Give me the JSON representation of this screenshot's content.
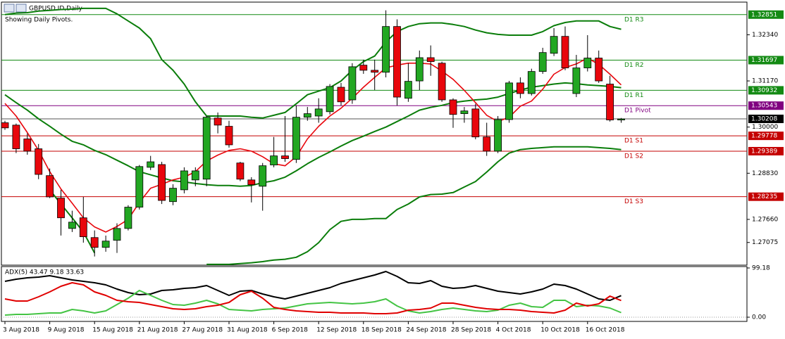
{
  "chart_data": [
    {
      "type": "candlestick",
      "title": "GBPUSD.ID,Daily",
      "subtitle": "Showing Daily Pivots.",
      "categories": [
        "3 Aug 2018",
        null,
        null,
        null,
        "9 Aug 2018",
        null,
        null,
        null,
        "15 Aug 2018",
        null,
        null,
        null,
        "21 Aug 2018",
        null,
        null,
        null,
        "27 Aug 2018",
        null,
        null,
        null,
        "31 Aug 2018",
        null,
        null,
        null,
        "6 Sep 2018",
        null,
        null,
        null,
        "12 Sep 2018",
        null,
        null,
        null,
        "18 Sep 2018",
        null,
        null,
        null,
        "24 Sep 2018",
        null,
        null,
        null,
        "28 Sep 2018",
        null,
        null,
        null,
        "4 Oct 2018",
        null,
        null,
        null,
        "10 Oct 2018",
        null,
        null,
        null,
        "16 Oct 2018",
        null,
        null,
        null
      ],
      "open": [
        1.3011,
        1.3005,
        1.297,
        1.2945,
        1.2877,
        1.282,
        1.2743,
        1.277,
        1.272,
        1.2695,
        1.2713,
        1.2743,
        1.2797,
        1.2898,
        1.2905,
        1.2811,
        1.2841,
        1.2866,
        1.2868,
        1.3023,
        1.3002,
        1.2909,
        1.2866,
        1.285,
        1.2904,
        1.2927,
        1.2918,
        1.3025,
        1.3028,
        1.3039,
        1.3101,
        1.3069,
        1.3157,
        1.3144,
        1.3139,
        1.3255,
        1.3073,
        1.3117,
        1.3176,
        1.3162,
        1.3069,
        1.3034,
        1.3046,
        1.2975,
        1.2939,
        1.3019,
        1.3112,
        1.3085,
        1.3141,
        1.3187,
        1.323,
        1.3085,
        1.315,
        1.3175,
        1.3109,
        1.3018
      ],
      "high": [
        1.3016,
        1.3009,
        1.2984,
        1.2957,
        1.2895,
        1.2841,
        1.2788,
        1.2823,
        1.2738,
        1.2725,
        1.2756,
        1.2802,
        1.2904,
        1.2927,
        1.2912,
        1.2855,
        1.2898,
        1.2898,
        1.3028,
        1.3037,
        1.3016,
        1.2912,
        1.2873,
        1.2909,
        1.2975,
        1.3028,
        1.3055,
        1.3051,
        1.3073,
        1.3109,
        1.3112,
        1.3162,
        1.3171,
        1.3171,
        1.3296,
        1.3273,
        1.3162,
        1.3194,
        1.3207,
        1.3166,
        1.3073,
        1.3051,
        1.3059,
        1.3011,
        1.3028,
        1.3117,
        1.3126,
        1.3148,
        1.3201,
        1.3251,
        1.3255,
        1.3183,
        1.3233,
        1.3194,
        1.313,
        1.3023
      ],
      "low": [
        1.2993,
        1.2934,
        1.293,
        1.2868,
        1.282,
        1.2725,
        1.2734,
        1.2707,
        1.2672,
        1.2684,
        1.2681,
        1.2738,
        1.2791,
        1.2891,
        1.2805,
        1.2802,
        1.2832,
        1.285,
        1.285,
        1.2984,
        1.2948,
        1.2863,
        1.2809,
        1.2788,
        1.2898,
        1.2912,
        1.2909,
        1.3016,
        1.3011,
        1.3032,
        1.3055,
        1.3059,
        1.3135,
        1.3094,
        1.3126,
        1.3055,
        1.3064,
        1.3094,
        1.313,
        1.3064,
        1.2998,
        1.3011,
        1.2969,
        1.2927,
        1.2934,
        1.3011,
        1.3073,
        1.308,
        1.3135,
        1.318,
        1.3144,
        1.3076,
        1.3141,
        1.3112,
        1.3014,
        1.3011
      ],
      "close": [
        1.2998,
        1.2945,
        1.2939,
        1.288,
        1.2823,
        1.277,
        1.2759,
        1.2722,
        1.2695,
        1.2711,
        1.2743,
        1.2797,
        1.29,
        1.2912,
        1.2814,
        1.2845,
        1.2889,
        1.2889,
        1.3025,
        1.3005,
        1.2955,
        1.2868,
        1.2854,
        1.2902,
        1.2927,
        1.292,
        1.3025,
        1.3034,
        1.3046,
        1.3103,
        1.3064,
        1.3153,
        1.3144,
        1.3139,
        1.3255,
        1.3076,
        1.3116,
        1.3176,
        1.3166,
        1.3069,
        1.3032,
        1.3041,
        1.2975,
        1.2939,
        1.3019,
        1.3112,
        1.3085,
        1.3141,
        1.3189,
        1.323,
        1.315,
        1.315,
        1.3175,
        1.3117,
        1.3018,
        1.30208
      ],
      "colors": {
        "up": "#22a722",
        "down": "#e8060c"
      },
      "series": [
        {
          "color": "#0a7d0a",
          "values": [
            1.3285,
            1.3289,
            1.329,
            1.3294,
            1.3296,
            1.3298,
            1.3299,
            1.3301,
            1.3301,
            1.3301,
            1.3287,
            1.3269,
            1.3251,
            1.3224,
            1.3171,
            1.3144,
            1.3109,
            1.3064,
            1.3028,
            1.3028,
            1.3028,
            1.3028,
            1.3025,
            1.3023,
            1.303,
            1.3037,
            1.3059,
            1.3082,
            1.3091,
            1.31,
            1.3117,
            1.3144,
            1.3166,
            1.318,
            1.3216,
            1.3242,
            1.3255,
            1.3262,
            1.3264,
            1.3264,
            1.326,
            1.3255,
            1.3246,
            1.3239,
            1.3235,
            1.3233,
            1.3233,
            1.3233,
            1.3242,
            1.3257,
            1.3265,
            1.3269,
            1.3269,
            1.3269,
            1.3255,
            1.3248
          ]
        },
        {
          "color": "#0a7d0a",
          "values": [
            1.3082,
            1.3062,
            1.3043,
            1.3021,
            1.3002,
            1.2982,
            1.2964,
            1.2955,
            1.2941,
            1.293,
            1.2916,
            1.2902,
            1.2887,
            1.2879,
            1.2871,
            1.2864,
            1.2861,
            1.2857,
            1.2854,
            1.2852,
            1.2852,
            1.285,
            1.2852,
            1.2859,
            1.2864,
            1.2873,
            1.2889,
            1.2907,
            1.2923,
            1.2937,
            1.2952,
            1.2966,
            1.2977,
            1.2989,
            1.3,
            1.3014,
            1.3028,
            1.3043,
            1.305,
            1.3055,
            1.3062,
            1.3066,
            1.3069,
            1.3071,
            1.3076,
            1.3085,
            1.3094,
            1.3101,
            1.3105,
            1.3109,
            1.3112,
            1.311,
            1.3107,
            1.3105,
            1.3103,
            1.31
          ]
        },
        {
          "color": "#0a7d0a",
          "values": [
            null,
            null,
            null,
            null,
            1.2841,
            1.2805,
            1.277,
            1.2734,
            1.2681,
            null,
            null,
            null,
            null,
            null,
            null,
            null,
            null,
            null,
            1.2652,
            1.2652,
            1.2652,
            1.2654,
            1.2656,
            1.2659,
            1.2663,
            1.2665,
            1.267,
            1.2684,
            1.2707,
            1.274,
            1.2761,
            1.2766,
            1.2766,
            1.2768,
            1.2768,
            1.2791,
            1.2805,
            1.2823,
            1.2829,
            1.283,
            1.2834,
            1.2848,
            1.2862,
            1.2886,
            1.2912,
            1.2934,
            1.2943,
            1.2946,
            1.2948,
            1.295,
            1.295,
            1.295,
            1.295,
            1.2948,
            1.2946,
            1.2943
          ]
        },
        {
          "color": "#e8060c",
          "values": [
            1.306,
            1.3028,
            1.2986,
            1.2941,
            1.2887,
            1.2843,
            1.2807,
            1.277,
            1.2747,
            1.2734,
            1.2748,
            1.2766,
            1.2809,
            1.2845,
            1.2855,
            1.2866,
            1.2873,
            1.2887,
            1.2914,
            1.2929,
            1.2941,
            1.2945,
            1.2939,
            1.2925,
            1.2907,
            1.2902,
            1.2925,
            1.297,
            1.3002,
            1.3028,
            1.3048,
            1.3073,
            1.3101,
            1.3126,
            1.315,
            1.3157,
            1.3162,
            1.3162,
            1.316,
            1.3142,
            1.3121,
            1.3093,
            1.3062,
            1.303,
            1.3014,
            1.3025,
            1.3053,
            1.3066,
            1.3096,
            1.3134,
            1.3151,
            1.316,
            1.3175,
            1.3159,
            1.3134,
            1.3107
          ]
        }
      ],
      "levels": [
        {
          "label": "D1 R3",
          "value": 1.32851,
          "color": "#138a13"
        },
        {
          "label": "D1 R2",
          "value": 1.31697,
          "color": "#138a13"
        },
        {
          "label": "D1 R1",
          "value": 1.30932,
          "color": "#138a13"
        },
        {
          "label": "D1 Pivot",
          "value": 1.30543,
          "color": "#800080"
        },
        {
          "label": "D1 S1",
          "value": 1.29778,
          "color": "#c40000"
        },
        {
          "label": "D1 S2",
          "value": 1.29389,
          "color": "#c40000"
        },
        {
          "label": "D1 S3",
          "value": 1.28235,
          "color": "#c40000"
        }
      ],
      "last": 1.30208,
      "ylim": [
        1.265,
        1.3315
      ],
      "yticks": [
        {
          "value": 1.3234,
          "label": "1.32340"
        },
        {
          "value": 1.3117,
          "label": "1.31170"
        },
        {
          "value": 1.3,
          "label": "1.30000"
        },
        {
          "value": 1.2883,
          "label": "1.28830"
        },
        {
          "value": 1.2766,
          "label": "1.27660"
        },
        1.27075
      ],
      "grid": false
    },
    {
      "type": "line",
      "title": "ADX(5) 43.47 9.18 33.63",
      "series": [
        {
          "color": "#000000",
          "values": [
            72.3,
            76.5,
            79.4,
            80.8,
            83.6,
            79.4,
            75.1,
            72.3,
            69.4,
            65.2,
            56.7,
            49.6,
            45.3,
            46.8,
            53.8,
            55.3,
            58.1,
            59.5,
            63.8,
            53.8,
            43.9,
            52.4,
            53.8,
            46.8,
            41.1,
            36.8,
            42.5,
            48.2,
            53.8,
            59.5,
            68.0,
            73.7,
            79.4,
            85.0,
            92.1,
            82.2,
            69.4,
            68.0,
            73.7,
            62.3,
            58.1,
            59.5,
            63.8,
            58.1,
            52.4,
            49.6,
            46.8,
            51.0,
            56.7,
            66.6,
            63.8,
            56.7,
            46.8,
            36.8,
            34.0,
            43.5
          ]
        },
        {
          "color": "#44c444",
          "values": [
            4.3,
            5.7,
            5.7,
            7.1,
            8.5,
            8.5,
            15.6,
            12.8,
            8.5,
            12.8,
            25.5,
            38.3,
            53.8,
            43.9,
            34.0,
            25.5,
            24.1,
            28.3,
            34.0,
            26.9,
            15.6,
            14.2,
            12.8,
            15.6,
            17.0,
            18.4,
            22.7,
            26.9,
            28.3,
            29.8,
            28.3,
            26.9,
            28.3,
            31.2,
            36.8,
            22.7,
            12.8,
            8.5,
            11.3,
            15.6,
            18.4,
            15.6,
            12.8,
            11.3,
            14.2,
            24.1,
            28.3,
            21.3,
            19.8,
            34.0,
            34.0,
            21.3,
            24.1,
            22.7,
            18.4,
            9.2
          ]
        },
        {
          "color": "#e00000",
          "values": [
            36.8,
            32.6,
            32.6,
            41.1,
            51.0,
            62.3,
            69.4,
            65.2,
            51.0,
            43.9,
            34.0,
            31.2,
            29.8,
            25.5,
            21.3,
            17.0,
            15.6,
            17.0,
            21.3,
            24.1,
            29.8,
            45.3,
            52.4,
            38.3,
            19.8,
            15.6,
            12.8,
            11.3,
            9.9,
            9.9,
            8.5,
            8.5,
            8.5,
            7.1,
            7.1,
            8.5,
            14.2,
            15.6,
            18.4,
            28.3,
            28.3,
            24.1,
            19.8,
            17.0,
            15.6,
            15.6,
            14.2,
            11.3,
            9.9,
            8.5,
            14.2,
            28.3,
            22.7,
            26.9,
            42.5,
            33.6
          ]
        }
      ],
      "ylim": [
        -8.5,
        102
      ],
      "yticks": [
        99.18,
        {
          "value": 0,
          "label": "0.00"
        }
      ],
      "grid": false
    }
  ]
}
